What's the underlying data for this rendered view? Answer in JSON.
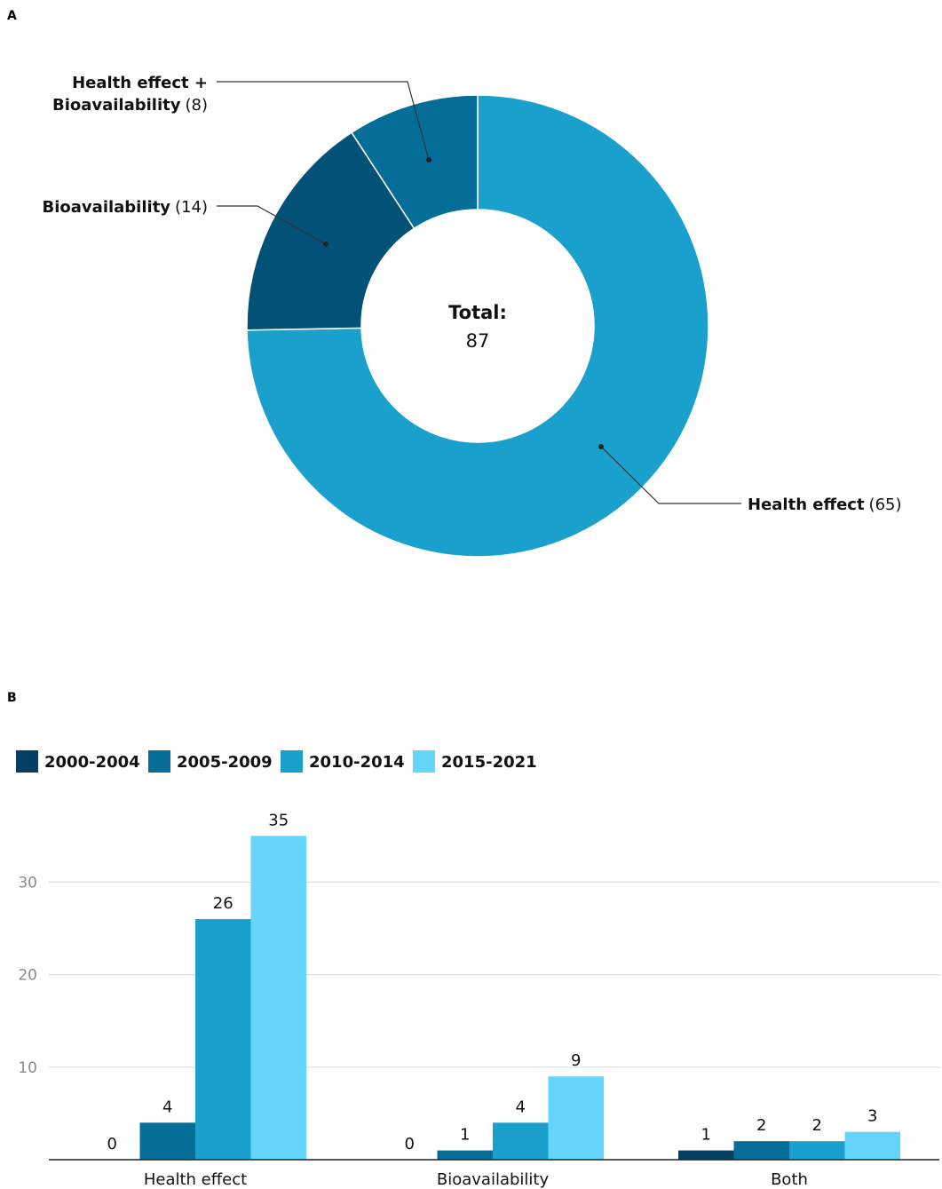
{
  "panel_labels": {
    "a": "A",
    "b": "B"
  },
  "chart_data": [
    {
      "type": "pie",
      "donut": true,
      "center_title": "Total:",
      "center_value": "87",
      "slices": [
        {
          "name": "Health effect",
          "value": 65,
          "color": "#1aa0cc"
        },
        {
          "name": "Bioavailability",
          "value": 14,
          "color": "#025278"
        },
        {
          "name": "Health effect + Bioavailability",
          "value": 8,
          "color": "#046e99"
        }
      ],
      "labels": [
        {
          "bold": "Health effect",
          "value": "(65)"
        },
        {
          "bold_line1": "Health effect +",
          "bold_line2": "Bioavailability",
          "value": "(8)"
        },
        {
          "bold": "Bioavailability",
          "value": "(14)"
        }
      ]
    },
    {
      "type": "bar",
      "categories": [
        "Health effect",
        "Bioavailability",
        "Both"
      ],
      "series": [
        {
          "name": "2000-2004",
          "color": "#033f63",
          "values": [
            0,
            0,
            1
          ]
        },
        {
          "name": "2005-2009",
          "color": "#046e99",
          "values": [
            4,
            1,
            2
          ]
        },
        {
          "name": "2010-2014",
          "color": "#1aa0cc",
          "values": [
            26,
            4,
            2
          ]
        },
        {
          "name": "2015-2021",
          "color": "#66d5fb",
          "values": [
            35,
            9,
            3
          ]
        }
      ],
      "yticks": [
        10,
        20,
        30
      ],
      "ylim": [
        0,
        35
      ],
      "grid": true,
      "legend": "top-left"
    }
  ]
}
